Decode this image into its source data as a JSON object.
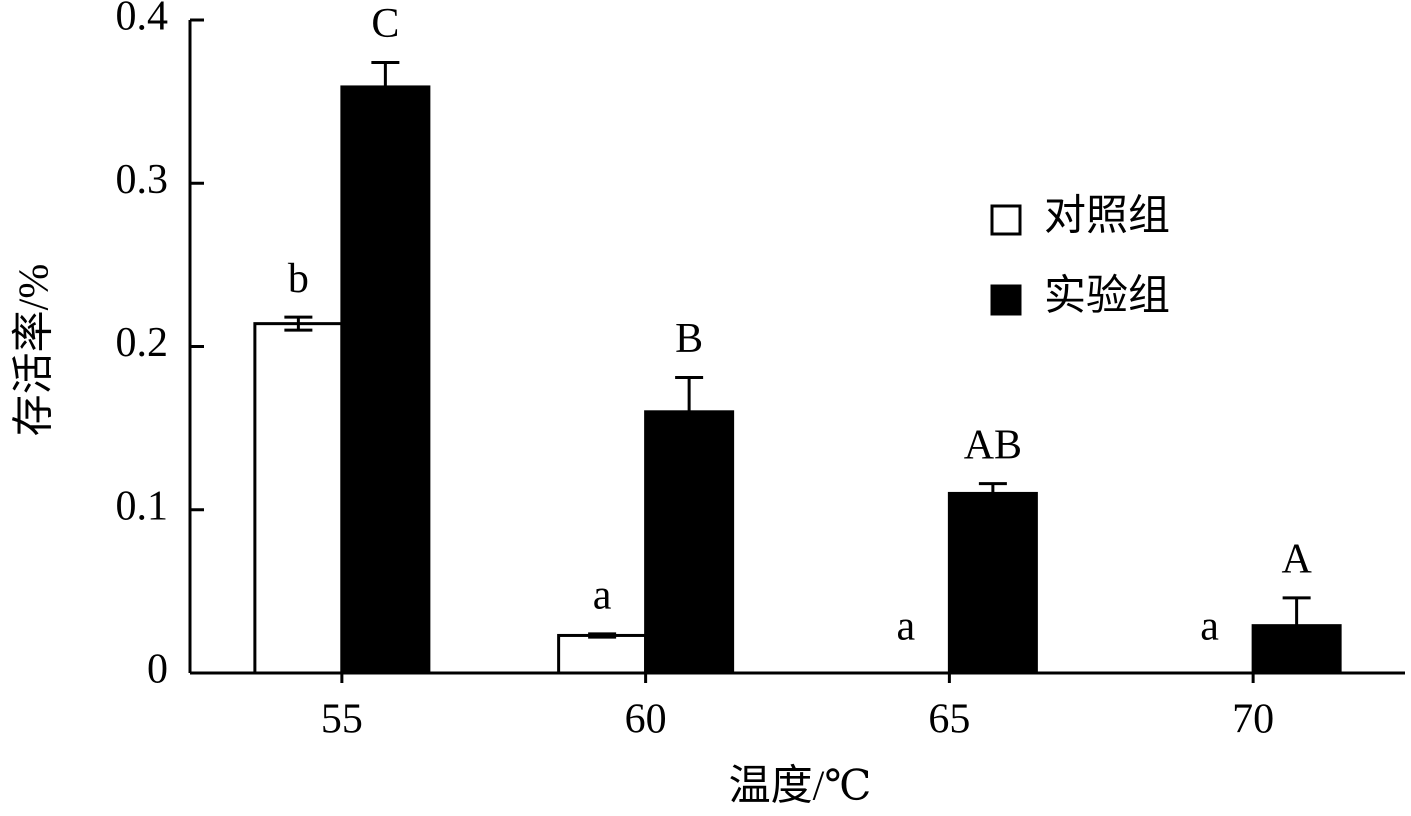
{
  "chart_data": {
    "type": "bar",
    "xlabel": "温度/℃",
    "ylabel": "存活率/%",
    "categories": [
      "55",
      "60",
      "65",
      "70"
    ],
    "series": [
      {
        "name": "对照组",
        "color": "#ffffff",
        "values": [
          0.214,
          0.023,
          0,
          0
        ],
        "errors": [
          0.004,
          0.001,
          0,
          0
        ],
        "letters": [
          "b",
          "a",
          "a",
          "a"
        ]
      },
      {
        "name": "实验组",
        "color": "#000000",
        "values": [
          0.359,
          0.16,
          0.11,
          0.029
        ],
        "errors": [
          0.015,
          0.021,
          0.006,
          0.017
        ],
        "letters": [
          "C",
          "B",
          "AB",
          "A"
        ]
      }
    ],
    "ylim": [
      0,
      0.4
    ],
    "yticks": [
      0,
      0.1,
      0.2,
      0.3,
      0.4
    ],
    "grid": false,
    "legend": "upper right"
  }
}
